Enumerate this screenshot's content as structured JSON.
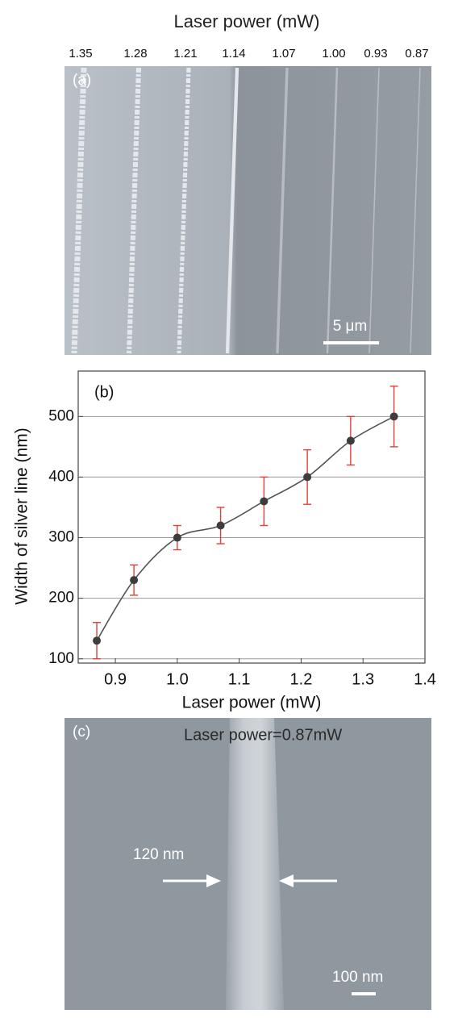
{
  "panel_a": {
    "label": "(a)",
    "title": "Laser power (mW)",
    "powers": [
      "1.35",
      "1.28",
      "1.21",
      "1.14",
      "1.07",
      "1.00",
      "0.93",
      "0.87"
    ],
    "scale_bar": "5  μm"
  },
  "chart_data": {
    "type": "line",
    "panel_label": "(b)",
    "x_label": "Laser power (mW)",
    "y_label": "Width of silver line (nm)",
    "x": [
      0.87,
      0.93,
      1.0,
      1.07,
      1.14,
      1.21,
      1.28,
      1.35
    ],
    "values": [
      130,
      230,
      300,
      320,
      360,
      400,
      460,
      500
    ],
    "errors": [
      30,
      25,
      20,
      30,
      40,
      45,
      40,
      50
    ],
    "color": "#555555",
    "marker_color": "#3d3d3d",
    "error_color": "#e0403a",
    "xlim": [
      0.84,
      1.4
    ],
    "xticks": [
      0.9,
      {
        "value": 1,
        "label": "1.0"
      },
      1.1,
      1.2,
      1.3,
      1.4
    ],
    "ylim": [
      93,
      575
    ],
    "yticks": [
      100,
      200,
      300,
      400,
      500
    ],
    "grid": true
  },
  "panel_c": {
    "label": "(c)",
    "annotation": "Laser power=0.87mW",
    "width_label": "120 nm",
    "scale_bar": "100 nm"
  }
}
